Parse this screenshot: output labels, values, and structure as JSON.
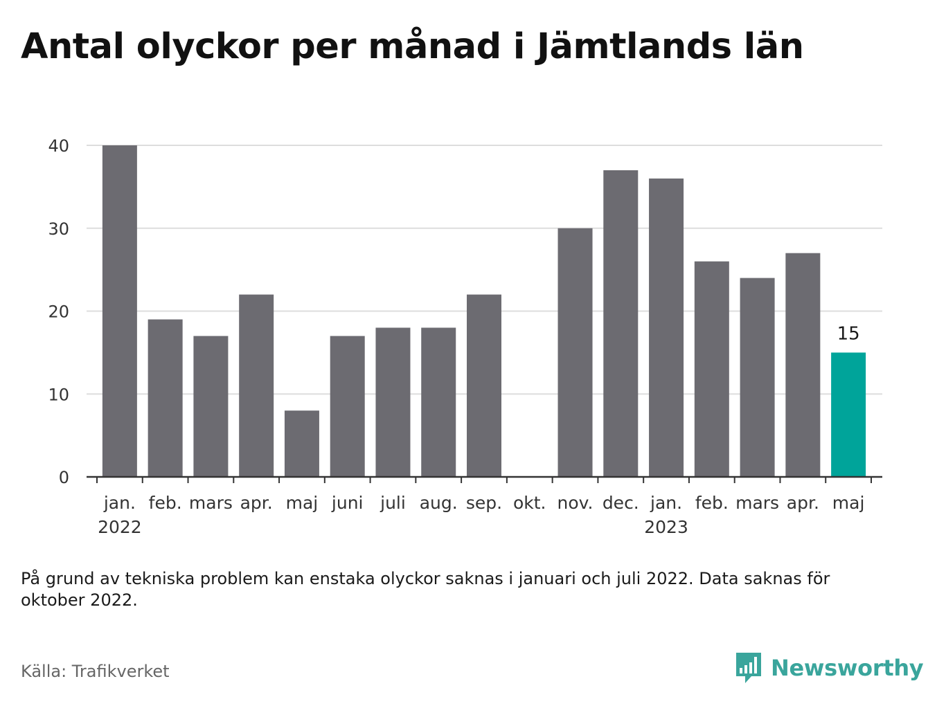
{
  "title": "Antal olyckor per månad i Jämtlands län",
  "note": "På grund av tekniska problem kan enstaka olyckor saknas i januari och juli 2022. Data saknas för oktober 2022.",
  "source": "Källa: Trafikverket",
  "brand": "Newsworthy",
  "colors": {
    "bar": "#6c6b71",
    "highlight": "#00a49a",
    "grid": "#dddddd",
    "axis": "#333333",
    "brand": "#3aa59c"
  },
  "chart_data": {
    "type": "bar",
    "categories": [
      "jan.",
      "feb.",
      "mars",
      "apr.",
      "maj",
      "juni",
      "juli",
      "aug.",
      "sep.",
      "okt.",
      "nov.",
      "dec.",
      "jan.",
      "feb.",
      "mars",
      "apr.",
      "maj"
    ],
    "year_labels": [
      {
        "index": 0,
        "label": "2022"
      },
      {
        "index": 12,
        "label": "2023"
      }
    ],
    "values": [
      40,
      19,
      17,
      22,
      8,
      17,
      18,
      18,
      22,
      null,
      30,
      37,
      36,
      26,
      24,
      27,
      15
    ],
    "highlight_index": 16,
    "highlight_label": "15",
    "yticks": [
      0,
      10,
      20,
      30,
      40
    ],
    "ylim": [
      0,
      40
    ],
    "grid": true
  }
}
